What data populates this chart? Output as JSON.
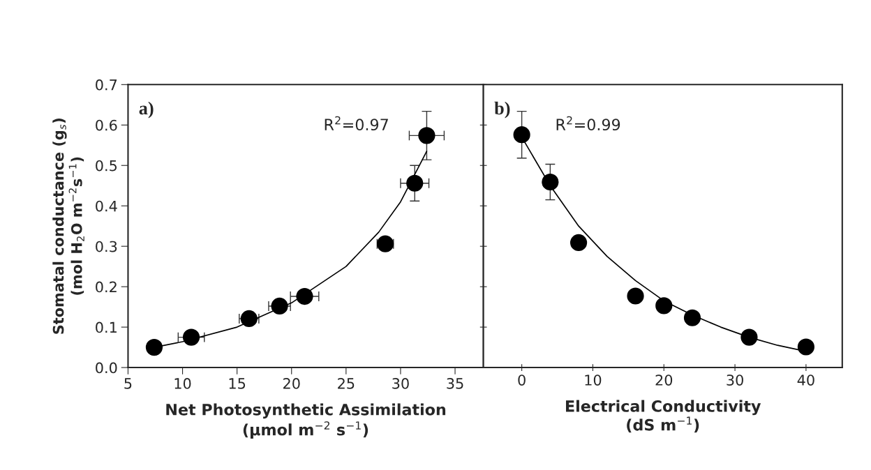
{
  "chart_data": [
    {
      "type": "scatter",
      "xlabel": "Net Photosynthetic Assimilation\n(μmol m$^{−2}$ s$^{−1}$)",
      "ylabel": "Stomatal conductance (g$_{s}$)\n(mol H$_{2}$O m$^{−2}$s$^{−1}$)",
      "annotations": [
        "a)",
        "R$^{2}$=0.97"
      ],
      "xlim": [
        5,
        37.6
      ],
      "xticks": [
        5,
        10,
        15,
        20,
        25,
        30,
        35
      ],
      "ylim": [
        0,
        0.7
      ],
      "yticks": [
        {
          "value": 0,
          "label": "0.0"
        },
        0.1,
        0.2,
        0.3,
        0.4,
        0.5,
        0.6,
        0.7
      ],
      "grid": false,
      "legend": false,
      "series": [
        {
          "marker": "circle",
          "color": "#000000",
          "x": [
            7.4,
            10.8,
            16.1,
            18.9,
            21.2,
            28.6,
            31.3,
            32.4
          ],
          "values": [
            0.05,
            0.075,
            0.121,
            0.152,
            0.176,
            0.306,
            0.456,
            0.574
          ],
          "errors": [
            null,
            null,
            null,
            null,
            0.01,
            0.015,
            0.044,
            0.06
          ],
          "xerrors": [
            null,
            1.2,
            0.9,
            1.0,
            1.3,
            0.75,
            1.3,
            1.6
          ]
        },
        {
          "type": "line",
          "color": "#000000",
          "x": [
            7.4,
            10,
            15,
            20,
            25,
            28,
            30,
            32.4
          ],
          "values": [
            0.05,
            0.064,
            0.1,
            0.16,
            0.25,
            0.335,
            0.41,
            0.535
          ]
        }
      ]
    },
    {
      "type": "scatter",
      "xlabel": "Electrical Conductivity\n(dS m$^{−1}$)",
      "annotations": [
        "b)",
        "R$^{2}$=0.99"
      ],
      "xlim": [
        -5.4,
        45.1
      ],
      "xticks": [
        0,
        10,
        20,
        30,
        40
      ],
      "ylim": [
        0,
        0.7
      ],
      "yticks": [
        0,
        0.1,
        0.2,
        0.3,
        0.4,
        0.5,
        0.6,
        0.7
      ],
      "tick_labels": "x",
      "grid": false,
      "legend": false,
      "series": [
        {
          "marker": "circle",
          "color": "#000000",
          "x": [
            0,
            4,
            8,
            16,
            20,
            24,
            32,
            40
          ],
          "values": [
            0.576,
            0.459,
            0.309,
            0.177,
            0.153,
            0.123,
            0.075,
            0.051
          ],
          "errors": [
            0.058,
            0.044,
            0.01,
            null,
            null,
            null,
            null,
            null
          ]
        },
        {
          "type": "line",
          "color": "#000000",
          "x": [
            0,
            4,
            8,
            12,
            16,
            20,
            24,
            28,
            32,
            36,
            40
          ],
          "values": [
            0.57,
            0.45,
            0.35,
            0.275,
            0.215,
            0.165,
            0.13,
            0.1,
            0.075,
            0.055,
            0.04
          ]
        }
      ]
    }
  ]
}
